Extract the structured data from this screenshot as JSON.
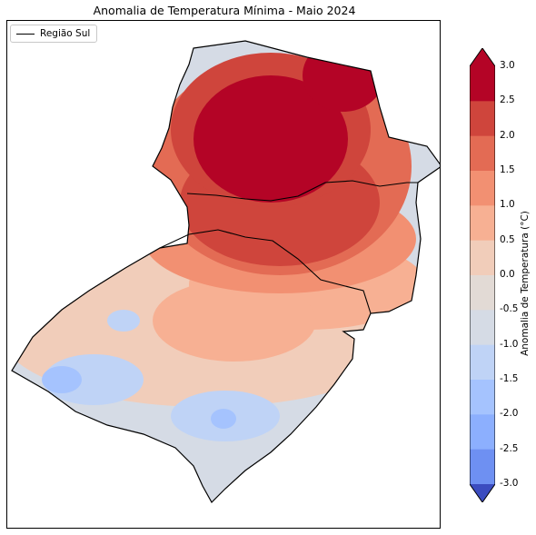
{
  "title": "Anomalia de Temperatura Mínima - Maio 2024",
  "legend": {
    "label": "Região Sul"
  },
  "colorbar": {
    "label": "Anomalia de Temperatura (°C)",
    "ticks": [
      "3.0",
      "2.5",
      "2.0",
      "1.5",
      "1.0",
      "0.5",
      "0.0",
      "-0.5",
      "-1.0",
      "-1.5",
      "-2.0",
      "-2.5",
      "-3.0"
    ],
    "colors": [
      "#b40426",
      "#cf453c",
      "#e36b54",
      "#f29072",
      "#f7b093",
      "#f1cdba",
      "#e2dad5",
      "#d5dbe5",
      "#bfd3f6",
      "#a5c3fe",
      "#8caffe",
      "#6e90f2",
      "#4f69d9"
    ],
    "extend_max_color": "#b40426",
    "extend_min_color": "#3b4cc0"
  }
}
